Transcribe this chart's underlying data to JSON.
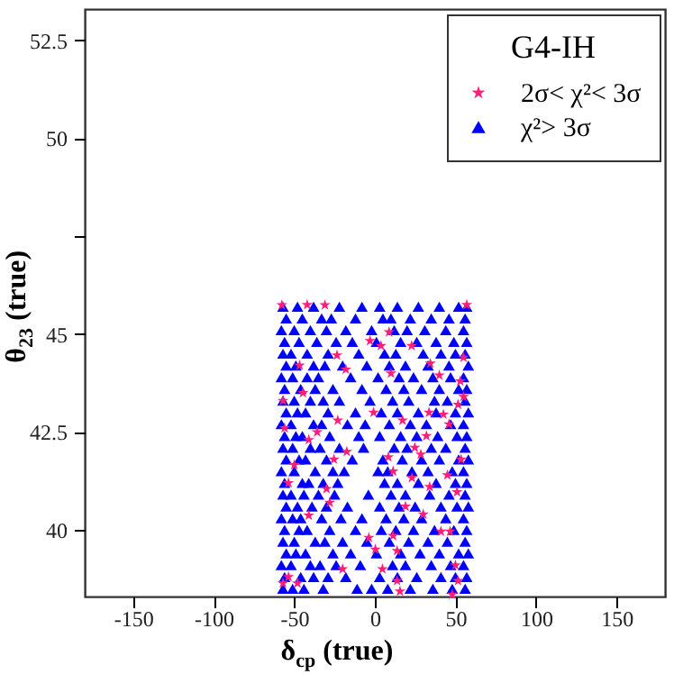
{
  "chart_data": {
    "type": "scatter",
    "xlabel": "δ$_{cp}$ (true)",
    "ylabel": "θ$_{23}$ (true)",
    "legend_title": "G4-IH",
    "legend": "top right",
    "grid": false,
    "xlim": [
      -180,
      180
    ],
    "xticks": [
      -150,
      -100,
      -50,
      0,
      50,
      100,
      150
    ],
    "ylim": [
      38.3,
      53.3
    ],
    "yticks": [
      40,
      42.5,
      45,
      {
        "value": 47.5,
        "label": null
      },
      50,
      52.5
    ],
    "series": [
      {
        "name": "2σ< χ²< 3σ",
        "color": "#ff1f7a",
        "marker": "star",
        "x": [
          -46.7,
          -23.5,
          -18,
          -57,
          -44.6,
          -0.8,
          10,
          34.4,
          40,
          55,
          53,
          55,
          51.6,
          42.5,
          46,
          33.6,
          17.2,
          -23,
          -35.8,
          -41,
          -56,
          -17.4,
          -25.4,
          -50,
          -53.6,
          -30,
          -28,
          -41,
          8.4,
          11.3,
          24.8,
          32,
          28.5,
          23,
          34,
          45,
          51,
          53.5,
          19,
          30,
          41,
          46.7,
          -3.7,
          0.3,
          11.3,
          13.8,
          4.7,
          -20,
          -57,
          -53.6,
          -48,
          13.8,
          15.6,
          50,
          51.6,
          48,
          -3,
          3.8,
          22.8,
          -57.7,
          -42,
          -31,
          57,
          8.8
        ],
        "values": [
          44.2,
          44.46,
          44.1,
          43.3,
          43.5,
          43.0,
          44.0,
          44.25,
          43.95,
          44.4,
          43.8,
          43.4,
          43.2,
          42.95,
          42.7,
          43.0,
          42.8,
          42.8,
          42.5,
          42.3,
          42.6,
          42.0,
          41.8,
          41.66,
          41.2,
          41.05,
          40.7,
          40.37,
          41.86,
          41.5,
          42.1,
          42.4,
          41.93,
          41.33,
          41.1,
          41.4,
          40.97,
          41.8,
          40.6,
          40.4,
          39.96,
          39.96,
          39.8,
          39.5,
          39.85,
          39.47,
          39.0,
          39.0,
          38.64,
          38.8,
          38.64,
          38.7,
          38.43,
          39.1,
          38.7,
          38.35,
          44.83,
          44.7,
          44.7,
          45.74,
          45.75,
          45.74,
          45.75,
          45.05
        ]
      },
      {
        "name": "χ²> 3σ",
        "color": "#0000ff",
        "marker": "triangle",
        "x": [
          -57,
          -48,
          -38,
          -22,
          -8,
          3,
          14,
          27,
          40,
          52,
          57,
          -55,
          -45,
          -33,
          -27,
          -12,
          5,
          10,
          22,
          35,
          46,
          56,
          -58,
          -50,
          -40,
          -30,
          -18,
          -2,
          12,
          20,
          31,
          44,
          55,
          -56,
          -47,
          -36,
          -24,
          -14,
          1,
          16,
          26,
          38,
          49,
          57,
          -57,
          -52,
          -42,
          -29,
          -10,
          6,
          13,
          30,
          41,
          50,
          56,
          -55,
          -49,
          -38,
          -31,
          -20,
          -5,
          9,
          19,
          33,
          46,
          58,
          -58,
          -51,
          -42,
          -35,
          -15,
          2,
          15,
          24,
          36,
          47,
          55,
          -56,
          -46,
          -37,
          -26,
          -8,
          7,
          18,
          29,
          40,
          52,
          57,
          -57,
          -50,
          -40,
          -32,
          -22,
          -3,
          11,
          21,
          37,
          45,
          56,
          -55,
          -48,
          -43,
          -29,
          -12,
          4,
          14,
          27,
          38,
          50,
          58,
          -58,
          -52,
          -38,
          -33,
          -17,
          -6,
          9,
          22,
          32,
          47,
          55,
          -56,
          -49,
          -45,
          -28,
          -10,
          3,
          16,
          26,
          39,
          51,
          57,
          -57,
          -51,
          -40,
          -34,
          -22,
          -7,
          12,
          20,
          35,
          44,
          56,
          -55,
          -47,
          -43,
          -30,
          -14,
          5,
          17,
          29,
          40,
          52,
          58,
          -58,
          -50,
          -37,
          -26,
          -19,
          2,
          8,
          23,
          33,
          48,
          55,
          -56,
          -45,
          -41,
          -32,
          -23,
          6,
          14,
          27,
          38,
          50,
          57,
          -57,
          -52,
          -44,
          -35,
          -25,
          -4,
          10,
          19,
          34,
          46,
          56,
          -55,
          -48,
          -39,
          -30,
          -17,
          3,
          15,
          25,
          41,
          51,
          58,
          -58,
          -51,
          -46,
          -33,
          -21,
          -8,
          7,
          18,
          29,
          44,
          55,
          -56,
          -47,
          -42,
          -28,
          -12,
          4,
          13,
          24,
          37,
          49,
          57,
          -57,
          -50,
          -37,
          -31,
          -20,
          -5,
          9,
          21,
          33,
          45,
          56,
          -55,
          -49,
          -43,
          -26,
          -15,
          1,
          16,
          28,
          40,
          52,
          58,
          -58,
          -52,
          -40,
          -34,
          -24,
          -9,
          11,
          19,
          35,
          47,
          55,
          -56,
          -46,
          -38,
          -29,
          -18,
          3,
          14,
          26,
          41,
          50,
          57,
          -57,
          -51,
          -44,
          -32,
          -11,
          -2,
          8,
          22,
          36,
          48,
          56
        ],
        "values": [
          45.7,
          45.7,
          45.7,
          45.7,
          45.7,
          45.7,
          45.7,
          45.7,
          45.7,
          45.7,
          45.7,
          45.4,
          45.4,
          45.4,
          45.4,
          45.4,
          45.4,
          45.4,
          45.4,
          45.4,
          45.4,
          45.4,
          45.1,
          45.1,
          45.1,
          45.1,
          45.1,
          45.1,
          45.1,
          45.1,
          45.1,
          45.1,
          45.1,
          44.8,
          44.8,
          44.8,
          44.8,
          44.8,
          44.8,
          44.8,
          44.8,
          44.8,
          44.8,
          44.8,
          44.5,
          44.5,
          44.5,
          44.5,
          44.5,
          44.5,
          44.5,
          44.5,
          44.5,
          44.5,
          44.5,
          44.2,
          44.2,
          44.2,
          44.2,
          44.2,
          44.2,
          44.2,
          44.2,
          44.2,
          44.2,
          44.2,
          43.9,
          43.9,
          43.9,
          43.9,
          43.9,
          43.9,
          43.9,
          43.9,
          43.9,
          43.9,
          43.9,
          43.6,
          43.6,
          43.6,
          43.6,
          43.6,
          43.6,
          43.6,
          43.6,
          43.6,
          43.6,
          43.6,
          43.3,
          43.3,
          43.3,
          43.3,
          43.3,
          43.3,
          43.3,
          43.3,
          43.3,
          43.3,
          43.3,
          43.0,
          43.0,
          43.0,
          43.0,
          43.0,
          43.0,
          43.0,
          43.0,
          43.0,
          43.0,
          43.0,
          42.7,
          42.7,
          42.7,
          42.7,
          42.7,
          42.7,
          42.7,
          42.7,
          42.7,
          42.7,
          42.7,
          42.4,
          42.4,
          42.4,
          42.4,
          42.4,
          42.4,
          42.4,
          42.4,
          42.4,
          42.4,
          42.4,
          42.1,
          42.1,
          42.1,
          42.1,
          42.1,
          42.1,
          42.1,
          42.1,
          42.1,
          42.1,
          42.1,
          41.8,
          41.8,
          41.8,
          41.8,
          41.8,
          41.8,
          41.8,
          41.8,
          41.8,
          41.8,
          41.8,
          41.5,
          41.5,
          41.5,
          41.5,
          41.5,
          41.5,
          41.5,
          41.5,
          41.5,
          41.5,
          41.5,
          41.2,
          41.2,
          41.2,
          41.2,
          41.2,
          41.2,
          41.2,
          41.2,
          41.2,
          41.2,
          41.2,
          40.9,
          40.9,
          40.9,
          40.9,
          40.9,
          40.9,
          40.9,
          40.9,
          40.9,
          40.9,
          40.9,
          40.6,
          40.6,
          40.6,
          40.6,
          40.6,
          40.6,
          40.6,
          40.6,
          40.6,
          40.6,
          40.6,
          40.3,
          40.3,
          40.3,
          40.3,
          40.3,
          40.3,
          40.3,
          40.3,
          40.3,
          40.3,
          40.3,
          40.0,
          40.0,
          40.0,
          40.0,
          40.0,
          40.0,
          40.0,
          40.0,
          40.0,
          40.0,
          40.0,
          39.7,
          39.7,
          39.7,
          39.7,
          39.7,
          39.7,
          39.7,
          39.7,
          39.7,
          39.7,
          39.7,
          39.4,
          39.4,
          39.4,
          39.4,
          39.4,
          39.4,
          39.4,
          39.4,
          39.4,
          39.4,
          39.4,
          39.1,
          39.1,
          39.1,
          39.1,
          39.1,
          39.1,
          39.1,
          39.1,
          39.1,
          39.1,
          39.1,
          38.8,
          38.8,
          38.8,
          38.8,
          38.8,
          38.8,
          38.8,
          38.8,
          38.8,
          38.8,
          38.8,
          38.5,
          38.5,
          38.5,
          38.5,
          38.5,
          38.5,
          38.5,
          38.5,
          38.5,
          38.5,
          38.5
        ]
      }
    ]
  }
}
